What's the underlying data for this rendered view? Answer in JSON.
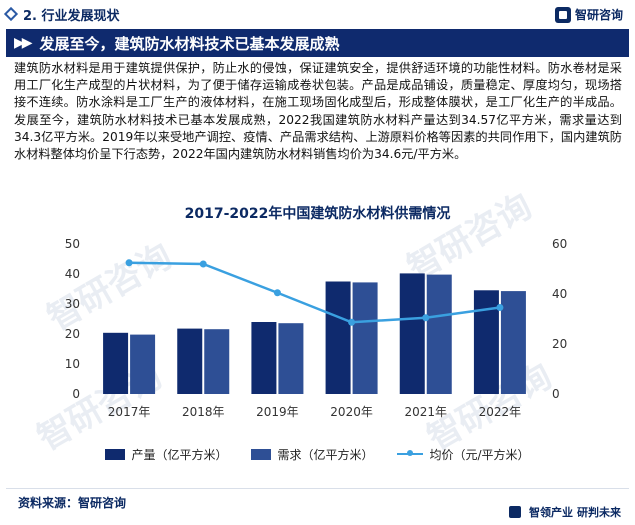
{
  "header": {
    "section_label": "2. 行业发展现状",
    "logo_text": "智研咨询"
  },
  "banner": {
    "title": "发展至今，建筑防水材料技术已基本发展成熟"
  },
  "body_text": "建筑防水材料是用于建筑提供保护，防止水的侵蚀，保证建筑安全，提供舒适环境的功能性材料。防水卷材是采用工厂化生产成型的片状材料，为了便于储存运输成卷状包装。产品是成品铺设，质量稳定、厚度均匀，现场搭接不连续。防水涂料是工厂生产的液体材料，在施工现场固化成型后，形成整体膜状，是工厂化生产的半成品。发展至今，建筑防水材料技术已基本发展成熟，2022我国建筑防水材料产量达到34.57亿平方米，需求量达到34.3亿平方米。2019年以来受地产调控、疫情、产品需求结构、上游原料价格等因素的共同作用下，国内建筑防水材料整体均价呈下行态势，2022年国内建筑防水材料销售均价为34.6元/平方米。",
  "watermark_text": "智研咨询",
  "chart_data": {
    "type": "bar",
    "title": "2017-2022年中国建筑防水材料供需情况",
    "categories": [
      "2017年",
      "2018年",
      "2019年",
      "2020年",
      "2021年",
      "2022年"
    ],
    "series": [
      {
        "name": "产量（亿平方米）",
        "type": "bar",
        "axis": "left",
        "values": [
          20.4,
          21.8,
          24.0,
          37.5,
          40.2,
          34.57
        ]
      },
      {
        "name": "需求（亿平方米）",
        "type": "bar",
        "axis": "left",
        "values": [
          19.8,
          21.6,
          23.6,
          37.2,
          39.8,
          34.3
        ]
      },
      {
        "name": "均价（元/平方米）",
        "type": "line",
        "axis": "right",
        "values": [
          52.5,
          52.0,
          40.5,
          28.7,
          30.5,
          34.6
        ]
      }
    ],
    "y_left": {
      "min": 0,
      "max": 50,
      "ticks": [
        "0",
        "10",
        "20",
        "30",
        "40",
        "50"
      ]
    },
    "y_right": {
      "min": 0,
      "max": 60,
      "ticks": [
        "0",
        "20",
        "40",
        "60"
      ]
    },
    "grid": false,
    "legend_position": "bottom",
    "colors": {
      "production": "#0f2a6e",
      "demand": "#2e4f95",
      "price": "#3aa0e0"
    }
  },
  "footer": {
    "source": "资料来源：智研咨询",
    "slogan_a": "智领产业",
    "slogan_b": "研判未来"
  }
}
